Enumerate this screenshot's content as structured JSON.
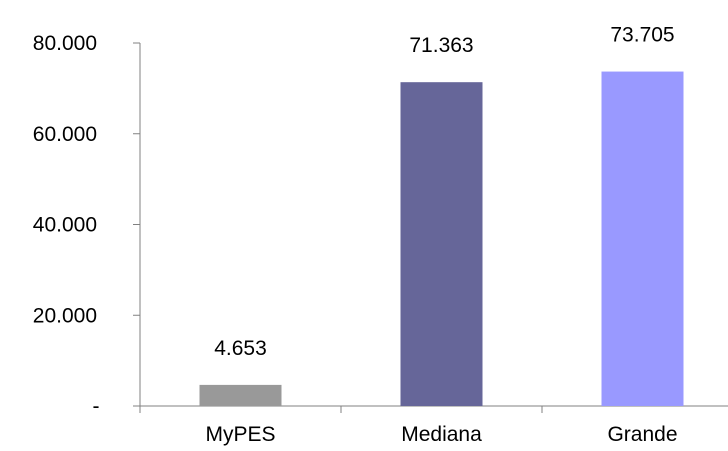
{
  "chart_data": {
    "type": "bar",
    "categories": [
      "MyPES",
      "Mediana",
      "Grande"
    ],
    "values": [
      4653,
      71363,
      73705
    ],
    "value_labels": [
      "4.653",
      "71.363",
      "73.705"
    ],
    "bar_colors": [
      "#999999",
      "#666699",
      "#9999ff"
    ],
    "ylim": [
      0,
      80000
    ],
    "y_ticks": [
      0,
      20000,
      40000,
      60000,
      80000
    ],
    "y_tick_labels": [
      "-",
      "20.000",
      "40.000",
      "60.000",
      "80.000"
    ],
    "title": "",
    "xlabel": "",
    "ylabel": "",
    "grid": false,
    "legend": "none"
  }
}
